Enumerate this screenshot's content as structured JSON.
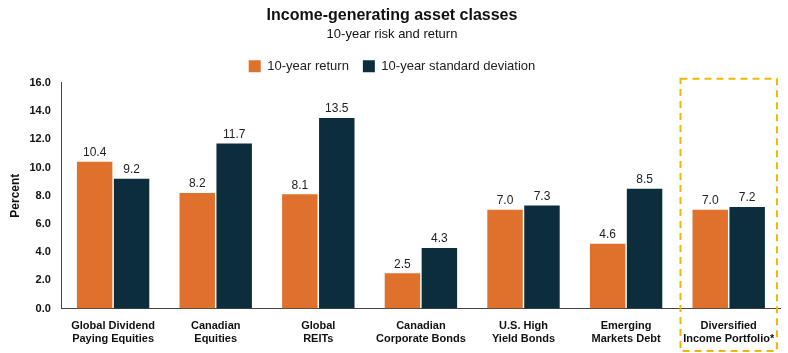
{
  "chart_data": {
    "type": "bar",
    "title": "Income-generating asset classes",
    "subtitle": "10-year risk and return",
    "y_label": "Percent",
    "categories": [
      [
        "Global Dividend",
        "Paying Equities"
      ],
      [
        "Canadian",
        "Equities"
      ],
      [
        "Global",
        "REITs"
      ],
      [
        "Canadian",
        "Corporate Bonds"
      ],
      [
        "U.S. High",
        "Yield Bonds"
      ],
      [
        "Emerging",
        "Markets Debt"
      ],
      [
        "Diversified",
        "Income Portfolio*"
      ]
    ],
    "series": [
      {
        "name": "10-year return",
        "color": "#e0712c",
        "values": [
          10.4,
          8.2,
          8.1,
          2.5,
          7.0,
          4.6,
          7.0
        ],
        "value_labels": [
          "10.4",
          "8.2",
          "8.1",
          "2.5",
          "7.0",
          "4.6",
          "7.0"
        ]
      },
      {
        "name": "10-year standard deviation",
        "color": "#0b2d3c",
        "values": [
          9.2,
          11.7,
          13.5,
          4.3,
          7.3,
          8.5,
          7.2
        ],
        "value_labels": [
          "9.2",
          "11.7",
          "13.5",
          "4.3",
          "7.3",
          "8.5",
          "7.2"
        ]
      }
    ],
    "ylim": [
      0,
      16
    ],
    "yticks": [
      {
        "value": 0,
        "label": "0.0"
      },
      {
        "value": 2,
        "label": "2.0"
      },
      {
        "value": 4,
        "label": "4.0"
      },
      {
        "value": 6,
        "label": "6.0"
      },
      {
        "value": 8,
        "label": "8.0"
      },
      {
        "value": 10,
        "label": "10.0"
      },
      {
        "value": 12,
        "label": "12.0"
      },
      {
        "value": 14,
        "label": "14.0"
      },
      {
        "value": 16,
        "label": "16.0"
      }
    ],
    "grid": false,
    "legend": "top",
    "data_labels": true
  }
}
